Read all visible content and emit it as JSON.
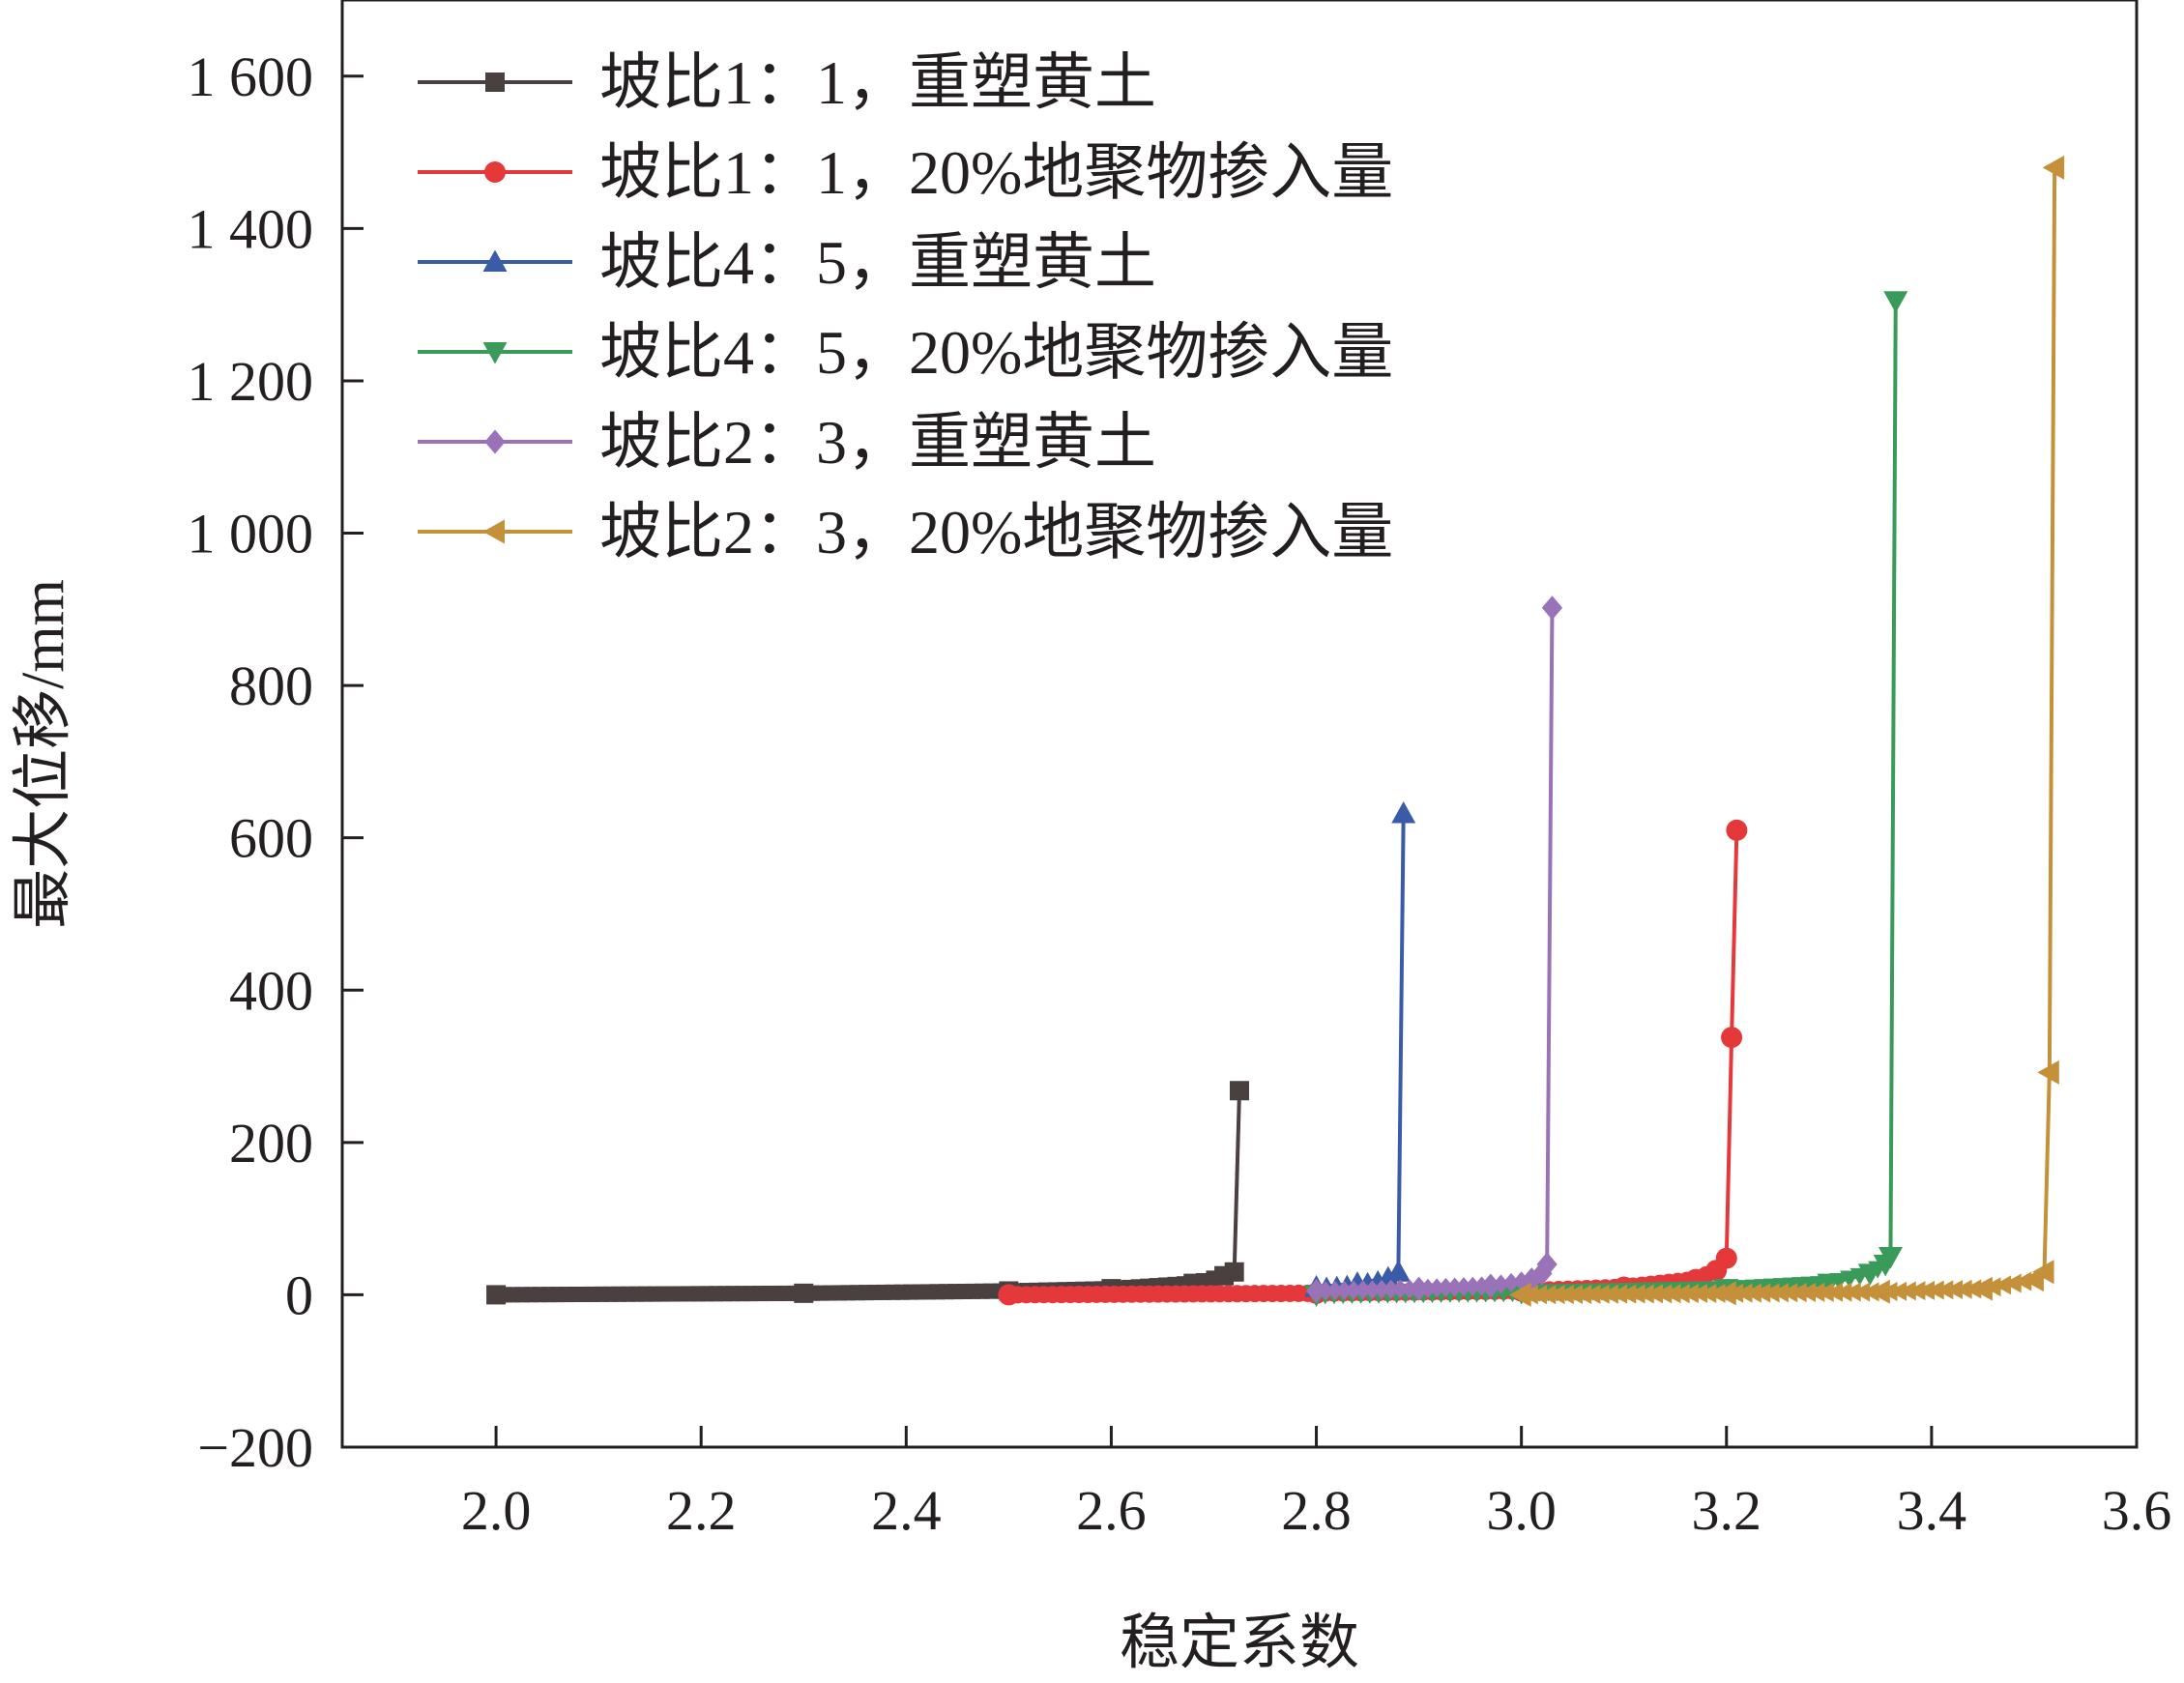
{
  "chart_data": {
    "type": "line",
    "xlabel": "稳定系数",
    "ylabel": "最大位移/mm",
    "xlim": [
      1.85,
      3.6
    ],
    "ylim": [
      -200,
      1700
    ],
    "xticks": [
      2.0,
      2.2,
      2.4,
      2.6,
      2.8,
      3.0,
      3.2,
      3.4,
      3.6
    ],
    "xtick_labels": [
      "2.0",
      "2.2",
      "2.4",
      "2.6",
      "2.8",
      "3.0",
      "3.2",
      "3.4",
      "3.6"
    ],
    "yticks": [
      -200,
      0,
      200,
      400,
      600,
      800,
      1000,
      1200,
      1400,
      1600
    ],
    "ytick_labels": [
      "−200",
      "0",
      "200",
      "400",
      "600",
      "800",
      "1 000",
      "1 200",
      "1 400",
      "1 600"
    ],
    "legend_position": "top-left",
    "grid": false,
    "series": [
      {
        "name": "坡比1：1，重塑黄土",
        "color": "#4a4040",
        "marker": "square",
        "x": [
          2.0,
          2.3,
          2.5,
          2.6,
          2.68,
          2.71,
          2.72,
          2.725
        ],
        "y": [
          0,
          2,
          5,
          8,
          15,
          25,
          30,
          268
        ]
      },
      {
        "name": "坡比1：1，20%地聚物掺入量",
        "color": "#e5383b",
        "marker": "circle",
        "x": [
          2.5,
          2.8,
          3.0,
          3.1,
          3.17,
          3.19,
          3.2,
          3.205,
          3.21
        ],
        "y": [
          0,
          2,
          5,
          10,
          20,
          32,
          48,
          338,
          610
        ]
      },
      {
        "name": "坡比4：5，重塑黄土",
        "color": "#3a5ba8",
        "marker": "triangle-up",
        "x": [
          2.8,
          2.84,
          2.87,
          2.88,
          2.885
        ],
        "y": [
          10,
          15,
          22,
          30,
          632
        ]
      },
      {
        "name": "坡比4：5，20%地聚物掺入量",
        "color": "#3a9a5a",
        "marker": "triangle-down",
        "x": [
          2.8,
          3.0,
          3.2,
          3.3,
          3.34,
          3.355,
          3.36,
          3.365
        ],
        "y": [
          0,
          3,
          8,
          15,
          28,
          40,
          50,
          1305
        ]
      },
      {
        "name": "坡比2：3，重塑黄土",
        "color": "#9a72b8",
        "marker": "diamond",
        "x": [
          2.8,
          2.9,
          2.97,
          3.01,
          3.02,
          3.025,
          3.03
        ],
        "y": [
          5,
          8,
          12,
          20,
          28,
          40,
          902
        ]
      },
      {
        "name": "坡比2：3，20%地聚物掺入量",
        "color": "#c4913a",
        "marker": "triangle-left",
        "x": [
          3.0,
          3.2,
          3.35,
          3.45,
          3.5,
          3.51,
          3.515,
          3.52
        ],
        "y": [
          0,
          2,
          4,
          8,
          20,
          30,
          292,
          1480
        ]
      }
    ]
  }
}
